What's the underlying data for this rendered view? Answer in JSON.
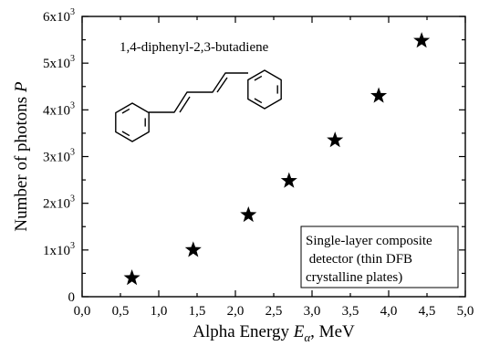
{
  "chart_data": {
    "type": "scatter",
    "title": "",
    "xlabel_prefix": "Alpha Energy ",
    "xlabel_symbol": "E",
    "xlabel_subscript": "α",
    "xlabel_suffix": ", MeV",
    "ylabel_prefix": "Number of photons ",
    "ylabel_symbol": "P",
    "xlim": [
      0,
      5
    ],
    "ylim": [
      0,
      6000
    ],
    "x_ticks": [
      0,
      0.5,
      1,
      1.5,
      2,
      2.5,
      3,
      3.5,
      4,
      4.5,
      5
    ],
    "x_tick_labels": [
      "0,0",
      "0,5",
      "1,0",
      "1,5",
      "2,0",
      "2,5",
      "3,0",
      "3,5",
      "4,0",
      "4,5",
      "5,0"
    ],
    "y_ticks": [
      0,
      1000,
      2000,
      3000,
      4000,
      5000,
      6000
    ],
    "y_tick_labels": [
      {
        "base": "0",
        "exp": ""
      },
      {
        "base": "1x10",
        "exp": "3"
      },
      {
        "base": "2x10",
        "exp": "3"
      },
      {
        "base": "3x10",
        "exp": "3"
      },
      {
        "base": "4x10",
        "exp": "3"
      },
      {
        "base": "5x10",
        "exp": "3"
      },
      {
        "base": "6x10",
        "exp": "3"
      }
    ],
    "marker": "star",
    "grid": false,
    "series": [
      {
        "x": [
          0.65,
          1.45,
          2.17,
          2.7,
          3.3,
          3.87,
          4.43
        ],
        "y": [
          400,
          1000,
          1750,
          2480,
          3350,
          4300,
          5480
        ]
      }
    ],
    "annotation": "1,4-diphenyl-2,3-butadiene",
    "legend_box_lines": [
      "Single-layer composite",
      " detector (thin DFB",
      "crystalline plates)"
    ],
    "legend_position": "bottom-right"
  }
}
